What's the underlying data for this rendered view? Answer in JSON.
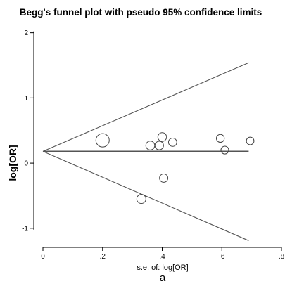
{
  "chart_data": {
    "type": "scatter",
    "title": "Begg's funnel plot with pseudo 95% confidence limits",
    "xlabel": "s.e. of: log[OR]",
    "ylabel": "log[OR]",
    "panel_label": "a",
    "xlim": [
      0,
      0.8
    ],
    "ylim": [
      -1.25,
      2.05
    ],
    "xticks": [
      {
        "value": 0,
        "label": "0"
      },
      {
        "value": 0.2,
        "label": ".2"
      },
      {
        "value": 0.4,
        "label": ".4"
      },
      {
        "value": 0.6,
        "label": ".6"
      },
      {
        "value": 0.8,
        "label": ".8"
      }
    ],
    "yticks": [
      {
        "value": -1,
        "label": "-1"
      },
      {
        "value": 0,
        "label": "0"
      },
      {
        "value": 1,
        "label": "1"
      },
      {
        "value": 2,
        "label": "2"
      }
    ],
    "pooled_estimate": 0.18,
    "pooled_line_x_range": [
      0,
      0.69
    ],
    "confidence_limits": {
      "x_range": [
        0,
        0.69
      ],
      "upper_end": 1.54,
      "lower_end": -1.19
    },
    "points": [
      {
        "x": 0.2,
        "y": 0.35,
        "weight": 1.0
      },
      {
        "x": 0.33,
        "y": -0.55,
        "weight": 0.45
      },
      {
        "x": 0.36,
        "y": 0.27,
        "weight": 0.42
      },
      {
        "x": 0.39,
        "y": 0.27,
        "weight": 0.38
      },
      {
        "x": 0.4,
        "y": 0.4,
        "weight": 0.4
      },
      {
        "x": 0.405,
        "y": -0.23,
        "weight": 0.36
      },
      {
        "x": 0.435,
        "y": 0.32,
        "weight": 0.34
      },
      {
        "x": 0.595,
        "y": 0.38,
        "weight": 0.3
      },
      {
        "x": 0.61,
        "y": 0.2,
        "weight": 0.28
      },
      {
        "x": 0.695,
        "y": 0.34,
        "weight": 0.26
      }
    ],
    "colors": {
      "line": "#555555",
      "marker": "#444444",
      "axis": "#000000"
    }
  }
}
